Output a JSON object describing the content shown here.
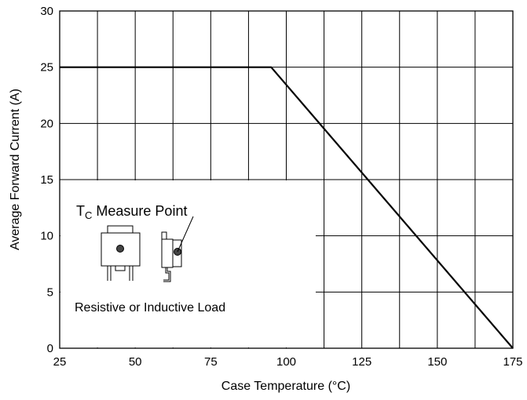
{
  "chart_data": {
    "type": "line",
    "xlabel": "Case Temperature (°C)",
    "ylabel": "Average Forward Current (A)",
    "xlim": [
      25,
      175
    ],
    "ylim": [
      0,
      30
    ],
    "x_ticks": [
      25,
      50,
      75,
      100,
      125,
      150,
      175
    ],
    "y_ticks": [
      0,
      5,
      10,
      15,
      20,
      25,
      30
    ],
    "x_minor_step": 12.5,
    "grid": true,
    "series": [
      {
        "x": [
          25,
          95,
          175
        ],
        "y": [
          25,
          25,
          0
        ]
      }
    ],
    "annotations": {
      "load_label": "Resistive or Inductive Load",
      "tc_main": "T",
      "tc_sub": "C",
      "tc_rest": " Measure Point"
    }
  }
}
